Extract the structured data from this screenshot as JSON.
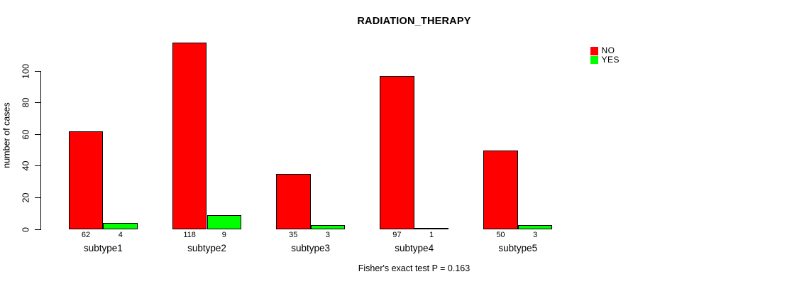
{
  "chart_data": {
    "type": "bar",
    "title": "RADIATION_THERAPY",
    "xlabel": "",
    "ylabel": "number of cases",
    "categories": [
      "subtype1",
      "subtype2",
      "subtype3",
      "subtype4",
      "subtype5"
    ],
    "series": [
      {
        "name": "NO",
        "color": "#FF0000",
        "values": [
          62,
          118,
          35,
          97,
          50
        ]
      },
      {
        "name": "YES",
        "color": "#00FF00",
        "values": [
          4,
          9,
          3,
          1,
          3
        ]
      }
    ],
    "show_value_labels": true,
    "value_labels": {
      "NO": [
        "62",
        "118",
        "35",
        "97",
        "50"
      ],
      "YES": [
        "4",
        "9",
        "3",
        "1",
        "3"
      ]
    },
    "yticks": [
      0,
      20,
      40,
      60,
      80,
      100
    ],
    "ylim": [
      0,
      120
    ],
    "grid": false,
    "legend_position": "topright",
    "legend": [
      {
        "label": "NO",
        "color": "#FF0000"
      },
      {
        "label": "YES",
        "color": "#00FF00"
      }
    ],
    "annotation": "Fisher's exact test P = 0.163",
    "bar_border_color": "#000000",
    "background_color": "#FFFFFF",
    "text_color": "#000000"
  }
}
